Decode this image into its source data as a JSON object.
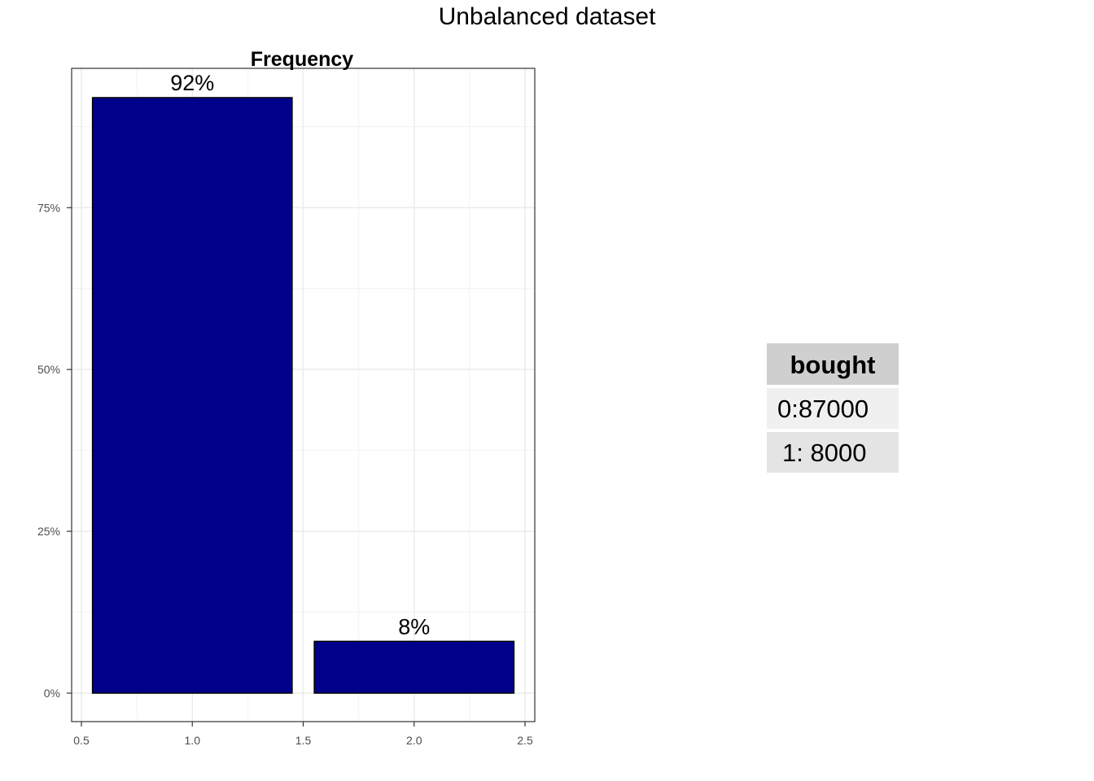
{
  "title": "Unbalanced dataset",
  "chart_data": {
    "type": "bar",
    "title": "Frequency",
    "x": [
      1.0,
      2.0
    ],
    "values": [
      0.92,
      0.08
    ],
    "data_labels": [
      "92%",
      "8%"
    ],
    "bar_color": "#00008B",
    "xlim": [
      0.5,
      2.5
    ],
    "ylim": [
      0,
      0.92
    ],
    "xticks": [
      0.5,
      1.0,
      1.5,
      2.0,
      2.5
    ],
    "xtick_labels": [
      "0.5",
      "1.0",
      "1.5",
      "2.0",
      "2.5"
    ],
    "yticks": [
      0,
      0.25,
      0.5,
      0.75
    ],
    "ytick_labels": [
      "0%",
      "25%",
      "50%",
      "75%"
    ],
    "grid": true
  },
  "table": {
    "header": "bought",
    "rows": [
      "0:87000",
      "1: 8000"
    ]
  }
}
